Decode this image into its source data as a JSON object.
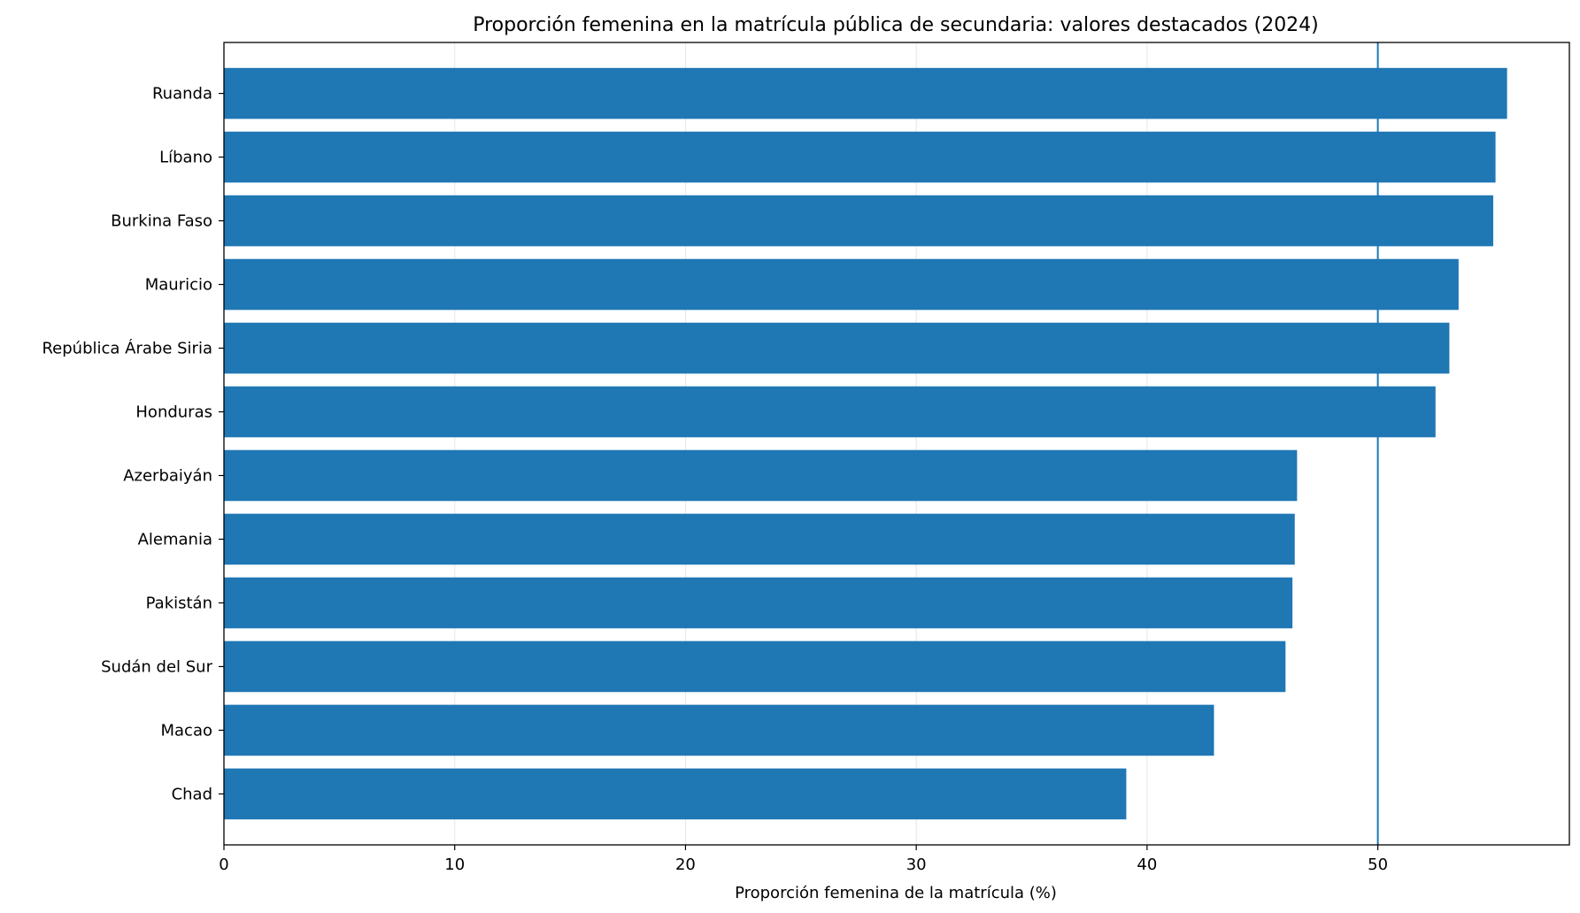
{
  "chart_data": {
    "type": "bar",
    "orientation": "horizontal",
    "title": "Proporción femenina en la matrícula pública de secundaria: valores destacados (2024)",
    "xlabel": "Proporción femenina de la matrícula (%)",
    "ylabel": "",
    "xlim": [
      0,
      58.3
    ],
    "xticks": [
      0,
      10,
      20,
      30,
      40,
      50
    ],
    "reference_line": 50,
    "grid": "vertical",
    "categories": [
      "Ruanda",
      "Líbano",
      "Burkina Faso",
      "Mauricio",
      "República Árabe Siria",
      "Honduras",
      "Azerbaiyán",
      "Alemania",
      "Pakistán",
      "Sudán del Sur",
      "Macao",
      "Chad"
    ],
    "values": [
      55.6,
      55.1,
      55.0,
      53.5,
      53.1,
      52.5,
      46.5,
      46.4,
      46.3,
      46.0,
      42.9,
      39.1
    ],
    "colors": {
      "bar": "#1f77b4",
      "reference_line": "#1f77b4"
    }
  }
}
